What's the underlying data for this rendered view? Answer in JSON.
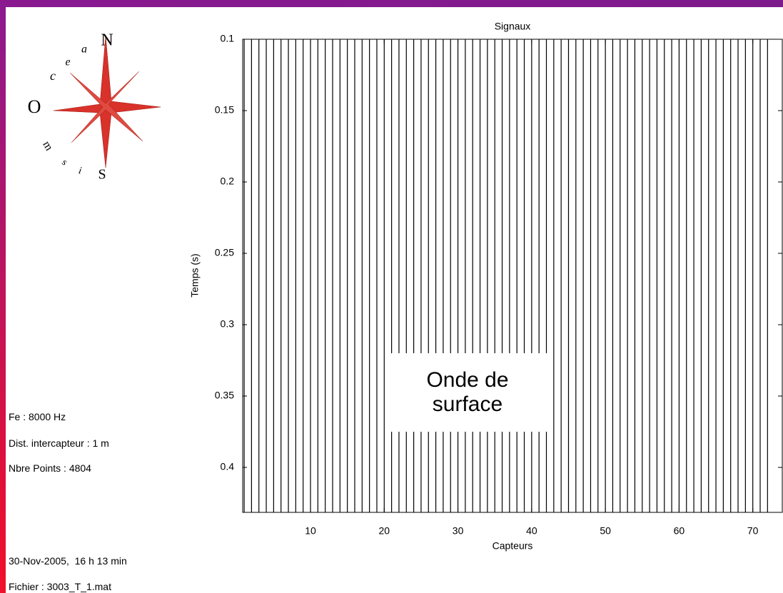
{
  "chart_data": {
    "type": "seismogram",
    "title": "Signaux",
    "x_label": "Capteurs",
    "y_label": "Temps (s)",
    "x": [
      1,
      2,
      3,
      4,
      5,
      6,
      7,
      8,
      9,
      10,
      11,
      12,
      13,
      14,
      15,
      16,
      17,
      18,
      19,
      20,
      21,
      22,
      23,
      24,
      25,
      26,
      27,
      28,
      29,
      30,
      31,
      32,
      33,
      34,
      35,
      36,
      37,
      38,
      39,
      40,
      41,
      42,
      43,
      44,
      45,
      46,
      47,
      48,
      49,
      50,
      51,
      52,
      53,
      54,
      55,
      56,
      57,
      58,
      59,
      60,
      61,
      62,
      63,
      64,
      65,
      66,
      67,
      68,
      69,
      70,
      71,
      72
    ],
    "color": "#000000",
    "xlim": [
      0.8,
      74
    ],
    "xticks": [
      10,
      20,
      30,
      40,
      50,
      60,
      70
    ],
    "ylim": [
      0.1,
      0.4315
    ],
    "yticks": [
      0.1,
      0.15,
      0.2,
      0.25,
      0.3,
      0.35,
      0.4
    ],
    "y_reversed": true,
    "annotation": [
      "Onde de",
      "surface"
    ]
  },
  "logo": {
    "north": "N",
    "south": "S",
    "letters": [
      "O",
      "c",
      "e",
      "a",
      "m",
      "s",
      "i"
    ]
  },
  "info": [
    "Fe : 8000 Hz",
    "Dist. intercapteur : 1 m",
    "Nbre Points : 4804",
    "30-Nov-2005,  16 h 13 min",
    "Fichier : 3003_T_1.mat"
  ]
}
